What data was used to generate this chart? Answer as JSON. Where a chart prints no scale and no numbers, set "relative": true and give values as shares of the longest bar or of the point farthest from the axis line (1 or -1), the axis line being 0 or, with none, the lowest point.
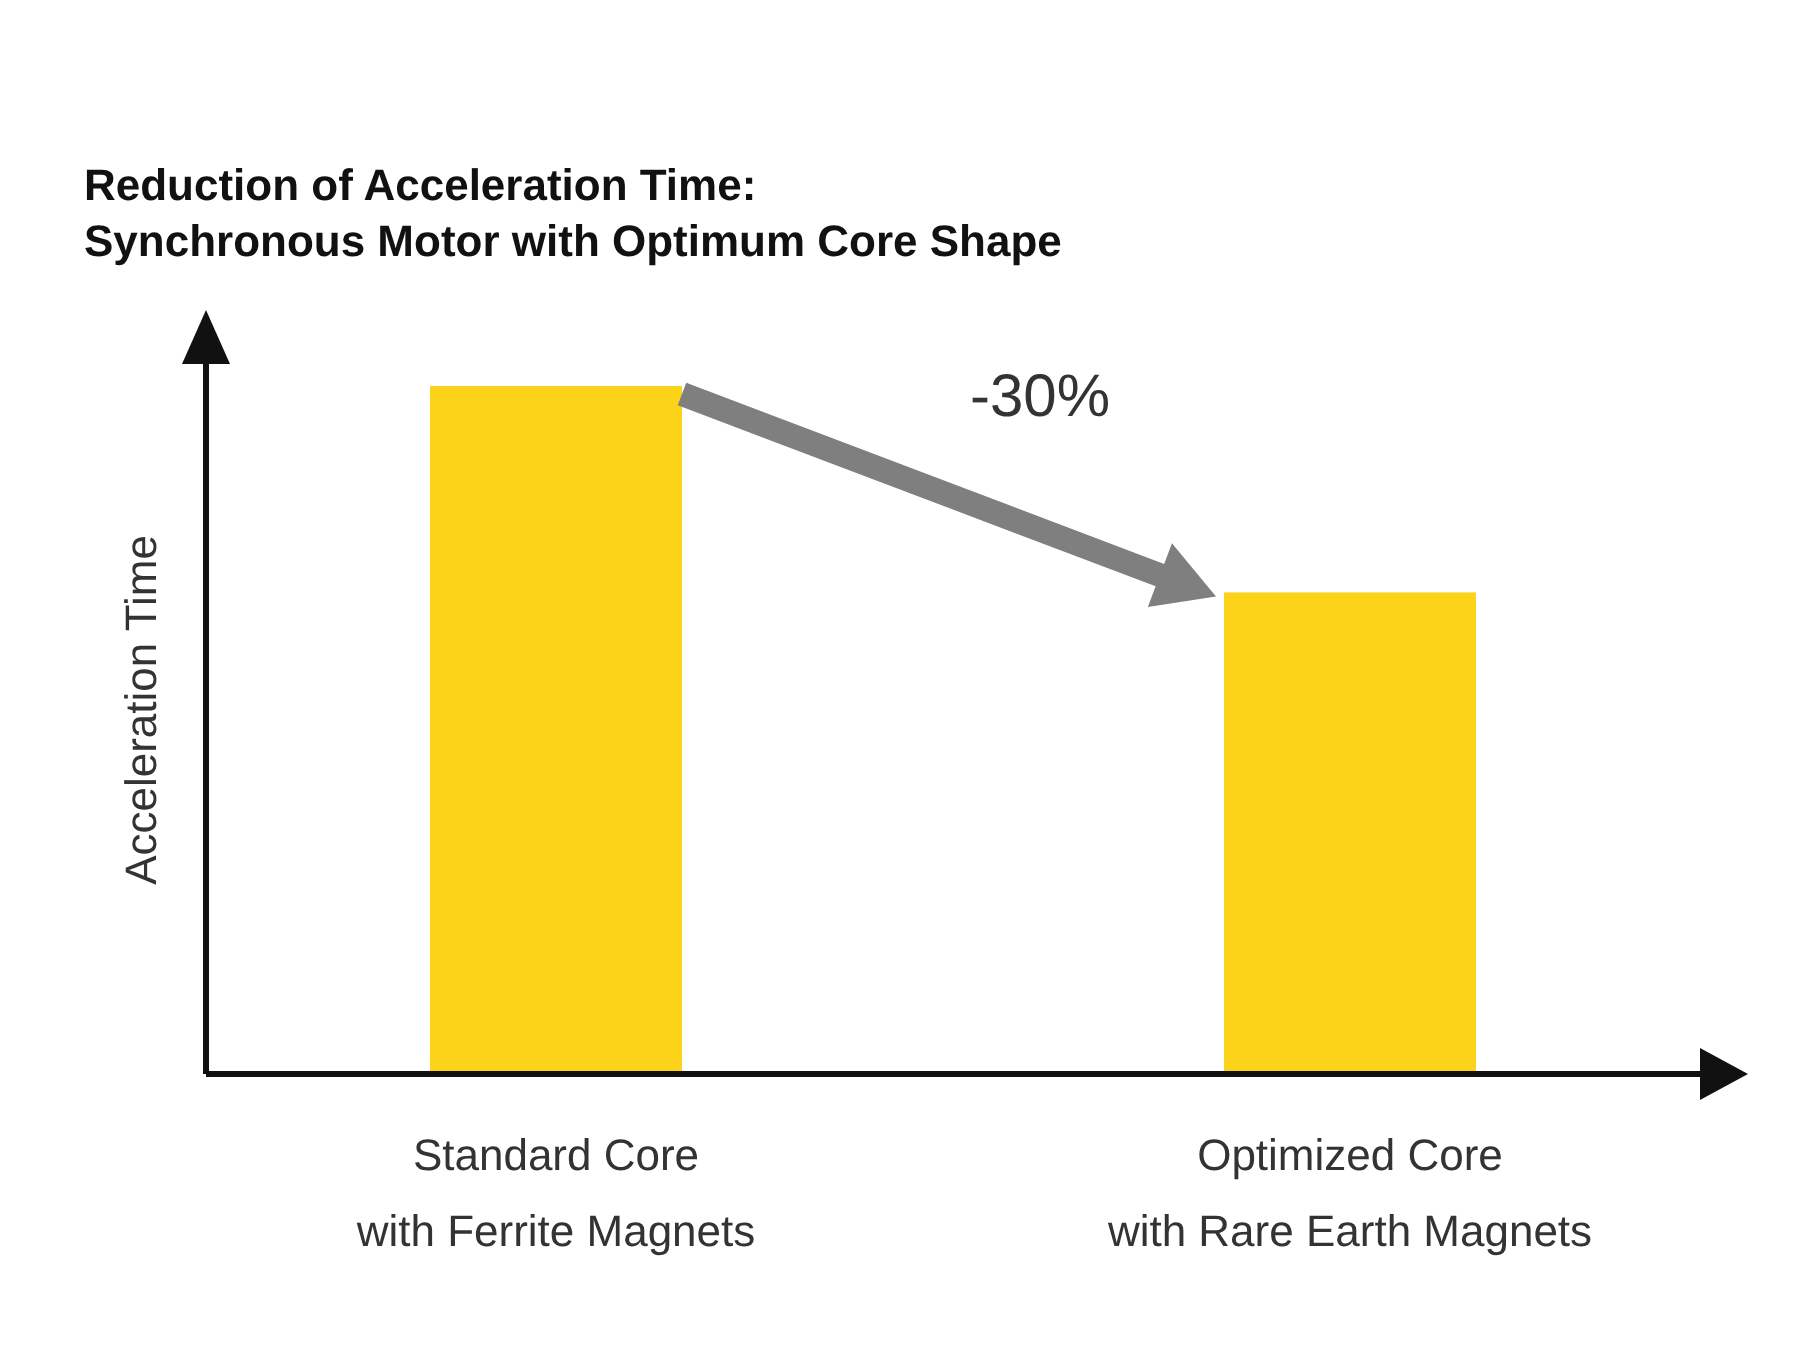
{
  "chart_data": {
    "type": "bar",
    "title": "Reduction of Acceleration Time:\nSynchronous Motor with Optimum Core Shape",
    "ylabel": "Acceleration Time",
    "categories": [
      "Standard Core\nwith Ferrite Magnets",
      "Optimized Core\nwith Rare Earth Magnets"
    ],
    "values": [
      1,
      0.7
    ],
    "color": "#fdd319",
    "relative": true,
    "annotations": [
      "-30%"
    ]
  }
}
